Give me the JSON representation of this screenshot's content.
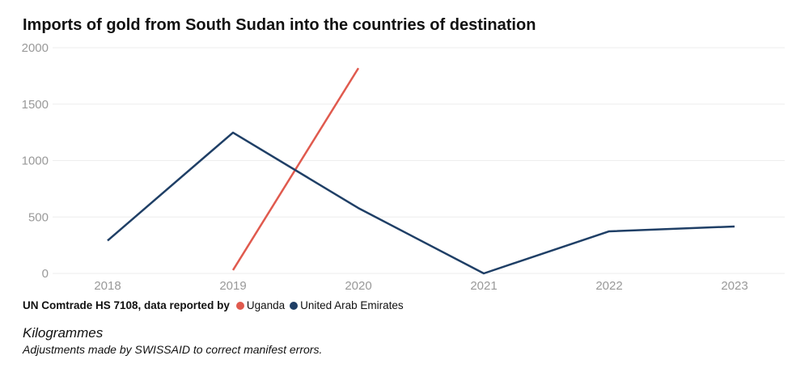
{
  "chart_data": {
    "type": "line",
    "title": "Imports of gold from South Sudan into the countries of destination",
    "x": [
      2018,
      2019,
      2020,
      2021,
      2022,
      2023
    ],
    "ylim": [
      0,
      2000
    ],
    "yticks": [
      0,
      500,
      1000,
      1500,
      2000
    ],
    "grid": true,
    "legend_position": "bottom-left",
    "legend_title": "UN Comtrade HS 7108, data reported by",
    "series": [
      {
        "name": "Uganda",
        "color": "#e05a4e",
        "values": [
          null,
          29,
          1819,
          null,
          null,
          null
        ]
      },
      {
        "name": "United Arab Emirates",
        "color": "#1f3f66",
        "values": [
          291,
          1248,
          579,
          0,
          373,
          416
        ]
      }
    ],
    "unit_label": "Kilogrammes",
    "note": "Adjustments made by SWISSAID to correct manifest errors."
  }
}
